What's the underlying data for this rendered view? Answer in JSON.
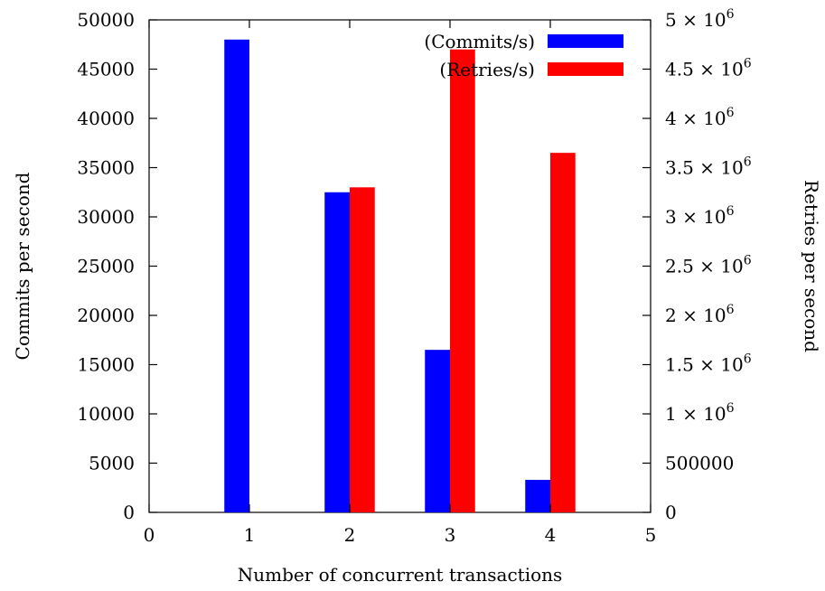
{
  "chart_data": {
    "type": "bar",
    "title": "",
    "xlabel": "Number of concurrent transactions",
    "ylabel": "Commits per second",
    "y2label": "Retries per second",
    "xlim": [
      0,
      5
    ],
    "ylim": [
      0,
      50000
    ],
    "y2lim": [
      0,
      5000000
    ],
    "x_ticks": [
      "0",
      "1",
      "2",
      "3",
      "4",
      "5"
    ],
    "y_ticks": [
      "0",
      "5000",
      "10000",
      "15000",
      "20000",
      "25000",
      "30000",
      "35000",
      "40000",
      "45000",
      "50000"
    ],
    "y2_ticks": [
      {
        "value": 0,
        "mantissa": "0",
        "exponent": ""
      },
      {
        "value": 500000,
        "mantissa": "500000",
        "exponent": ""
      },
      {
        "value": 1000000,
        "mantissa": "1 × 10",
        "exponent": "6"
      },
      {
        "value": 1500000,
        "mantissa": "1.5 × 10",
        "exponent": "6"
      },
      {
        "value": 2000000,
        "mantissa": "2 × 10",
        "exponent": "6"
      },
      {
        "value": 2500000,
        "mantissa": "2.5 × 10",
        "exponent": "6"
      },
      {
        "value": 3000000,
        "mantissa": "3 × 10",
        "exponent": "6"
      },
      {
        "value": 3500000,
        "mantissa": "3.5 × 10",
        "exponent": "6"
      },
      {
        "value": 4000000,
        "mantissa": "4 × 10",
        "exponent": "6"
      },
      {
        "value": 4500000,
        "mantissa": "4.5 × 10",
        "exponent": "6"
      },
      {
        "value": 5000000,
        "mantissa": "5 × 10",
        "exponent": "6"
      }
    ],
    "legend_position": "top-right",
    "grid": false,
    "series": [
      {
        "name": "(Commits/s)",
        "axis": "left",
        "color": "#0000ff",
        "x": [
          1,
          2,
          3,
          4
        ],
        "values": [
          48000,
          32500,
          16500,
          3300
        ]
      },
      {
        "name": "(Retries/s)",
        "axis": "right",
        "color": "#ff0000",
        "x": [
          2,
          3,
          4
        ],
        "values": [
          3300000,
          4700000,
          3650000
        ]
      }
    ]
  }
}
